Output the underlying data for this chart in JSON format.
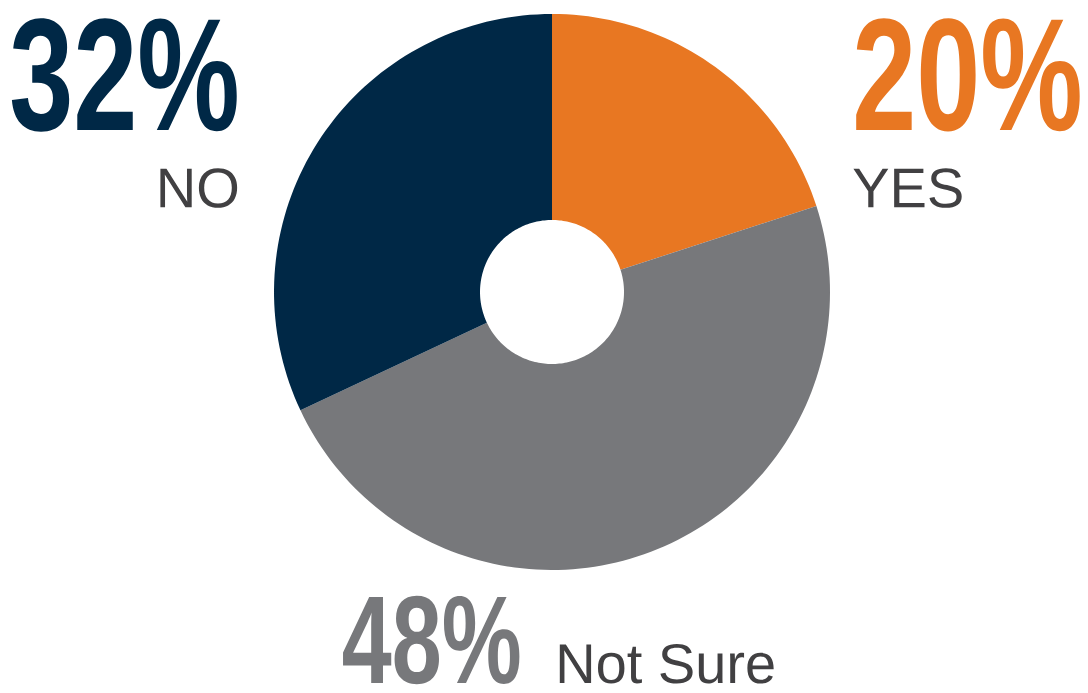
{
  "chart_data": {
    "type": "donut",
    "categories": [
      "YES",
      "Not Sure",
      "NO"
    ],
    "values": [
      20,
      48,
      32
    ],
    "colors": [
      "#e87722",
      "#77787b",
      "#002846"
    ],
    "value_labels": [
      "20%",
      "48%",
      "32%"
    ]
  }
}
